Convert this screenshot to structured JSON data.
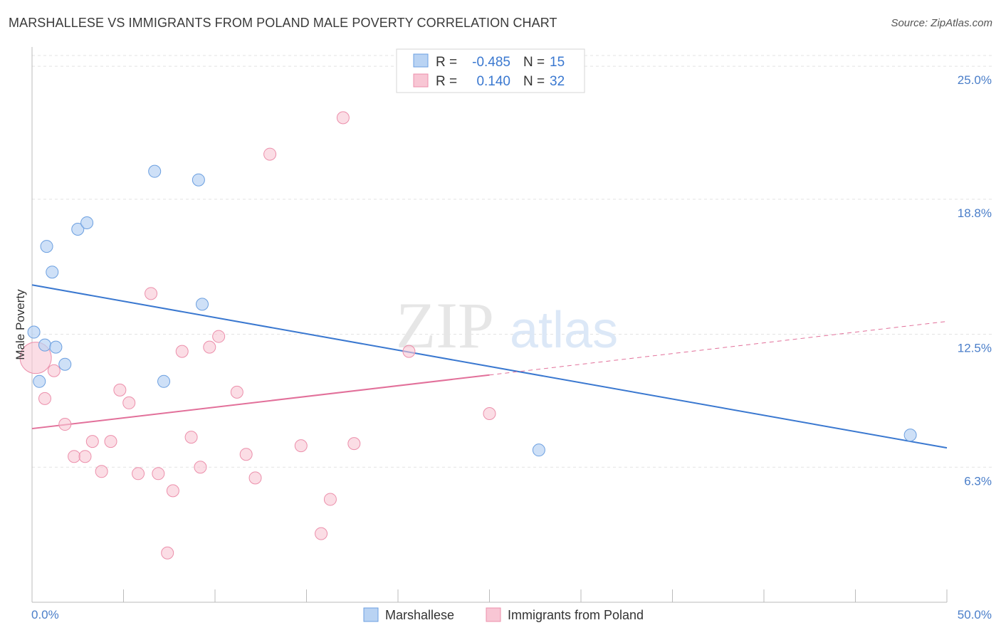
{
  "header": {
    "title": "MARSHALLESE VS IMMIGRANTS FROM POLAND MALE POVERTY CORRELATION CHART",
    "source": "Source: ZipAtlas.com"
  },
  "watermark": {
    "zip": "ZIP",
    "atlas": "atlas"
  },
  "legend_box": {
    "rows": [
      {
        "r_label": "R =",
        "r_value": "-0.485",
        "n_label": "N =",
        "n_value": "15"
      },
      {
        "r_label": "R =",
        "r_value": "0.140",
        "n_label": "N =",
        "n_value": "32"
      }
    ]
  },
  "colors": {
    "blue_fill": "#b9d3f3",
    "blue_stroke": "#6b9fe0",
    "blue_line": "#3a78d0",
    "pink_fill": "#f8c6d4",
    "pink_stroke": "#ec8fab",
    "pink_line": "#e2709a",
    "tick_label": "#4a7ec9",
    "grid": "#e3e3e3"
  },
  "chart_data": {
    "type": "scatter",
    "title": "MARSHALLESE VS IMMIGRANTS FROM POLAND MALE POVERTY CORRELATION CHART",
    "xlabel": "",
    "ylabel": "Male Poverty",
    "xlim": [
      0,
      50
    ],
    "ylim": [
      0,
      25.9
    ],
    "x_tick_labels": [
      "0.0%",
      "50.0%"
    ],
    "y_ticks": [
      6.3,
      12.5,
      18.8,
      25.0
    ],
    "y_tick_labels": [
      "6.3%",
      "12.5%",
      "18.8%",
      "25.0%"
    ],
    "grid": "horizontal dashed",
    "legend_placement": "top-center and bottom",
    "series": [
      {
        "name": "Marshallese",
        "r": -0.485,
        "n": 15,
        "points": [
          {
            "x": 0.1,
            "y": 12.6
          },
          {
            "x": 0.4,
            "y": 10.3
          },
          {
            "x": 0.7,
            "y": 12.0
          },
          {
            "x": 0.8,
            "y": 16.6
          },
          {
            "x": 1.1,
            "y": 15.4
          },
          {
            "x": 1.3,
            "y": 11.9
          },
          {
            "x": 1.8,
            "y": 11.1
          },
          {
            "x": 2.5,
            "y": 17.4
          },
          {
            "x": 3.0,
            "y": 17.7
          },
          {
            "x": 6.7,
            "y": 20.1
          },
          {
            "x": 7.2,
            "y": 10.3
          },
          {
            "x": 9.1,
            "y": 19.7
          },
          {
            "x": 9.3,
            "y": 13.9
          },
          {
            "x": 27.7,
            "y": 7.1
          },
          {
            "x": 48.0,
            "y": 7.8
          }
        ],
        "trend": {
          "x": [
            0,
            50
          ],
          "y": [
            14.8,
            7.2
          ],
          "style": "solid"
        }
      },
      {
        "name": "Immigrants from Poland",
        "r": 0.14,
        "n": 32,
        "points": [
          {
            "x": 0.2,
            "y": 11.4,
            "large": true
          },
          {
            "x": 0.7,
            "y": 9.5
          },
          {
            "x": 1.2,
            "y": 10.8
          },
          {
            "x": 1.8,
            "y": 8.3
          },
          {
            "x": 2.3,
            "y": 6.8
          },
          {
            "x": 2.9,
            "y": 6.8
          },
          {
            "x": 3.3,
            "y": 7.5
          },
          {
            "x": 3.8,
            "y": 6.1
          },
          {
            "x": 4.3,
            "y": 7.5
          },
          {
            "x": 4.8,
            "y": 9.9
          },
          {
            "x": 5.3,
            "y": 9.3
          },
          {
            "x": 5.8,
            "y": 6.0
          },
          {
            "x": 6.5,
            "y": 14.4
          },
          {
            "x": 6.9,
            "y": 6.0
          },
          {
            "x": 7.4,
            "y": 2.3
          },
          {
            "x": 7.7,
            "y": 5.2
          },
          {
            "x": 8.2,
            "y": 11.7
          },
          {
            "x": 8.7,
            "y": 7.7
          },
          {
            "x": 9.2,
            "y": 6.3
          },
          {
            "x": 9.7,
            "y": 11.9
          },
          {
            "x": 10.2,
            "y": 12.4
          },
          {
            "x": 11.2,
            "y": 9.8
          },
          {
            "x": 11.7,
            "y": 6.9
          },
          {
            "x": 12.2,
            "y": 5.8
          },
          {
            "x": 13.0,
            "y": 20.9
          },
          {
            "x": 14.7,
            "y": 7.3
          },
          {
            "x": 15.8,
            "y": 3.2
          },
          {
            "x": 16.3,
            "y": 4.8
          },
          {
            "x": 17.0,
            "y": 22.6
          },
          {
            "x": 17.6,
            "y": 7.4
          },
          {
            "x": 20.6,
            "y": 11.7
          },
          {
            "x": 25.0,
            "y": 8.8
          }
        ],
        "trend": {
          "x": [
            0,
            25
          ],
          "y": [
            8.1,
            10.6
          ],
          "style": "solid"
        },
        "trend_extension": {
          "x": [
            25,
            50
          ],
          "y": [
            10.6,
            13.1
          ],
          "style": "dashed"
        }
      }
    ]
  }
}
